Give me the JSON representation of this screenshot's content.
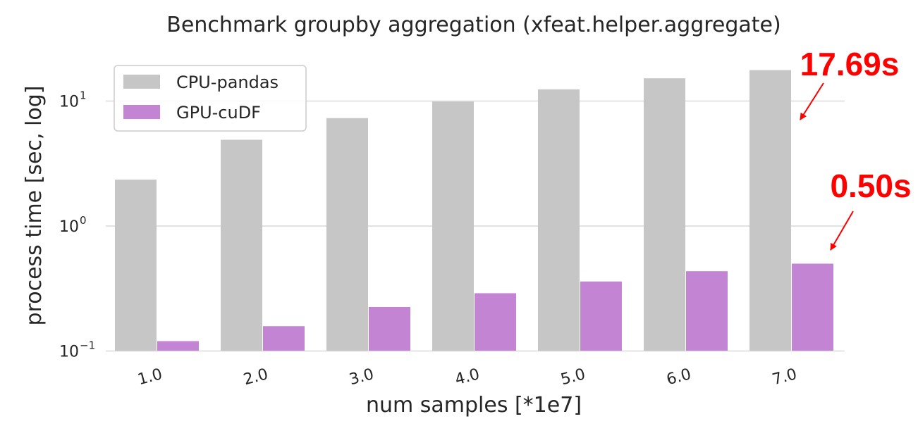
{
  "chart_data": {
    "type": "bar",
    "title": "Benchmark groupby aggregation (xfeat.helper.aggregate)",
    "xlabel": "num samples [*1e7]",
    "ylabel": "process time [sec, log]",
    "yscale": "log",
    "ylim": [
      0.085,
      25
    ],
    "grid": true,
    "legend_position": "upper-left",
    "categories": [
      "1.0",
      "2.0",
      "3.0",
      "4.0",
      "5.0",
      "6.0",
      "7.0"
    ],
    "series": [
      {
        "name": "CPU-pandas",
        "color": "#c6c6c6",
        "values": [
          2.35,
          4.9,
          7.3,
          9.9,
          12.4,
          15.2,
          17.69
        ]
      },
      {
        "name": "GPU-cuDF",
        "color": "#c484d4",
        "values": [
          0.12,
          0.158,
          0.225,
          0.29,
          0.36,
          0.435,
          0.5
        ]
      }
    ],
    "yticks": [
      {
        "base": "10",
        "exp": "1",
        "value": 10
      },
      {
        "base": "10",
        "exp": "0",
        "value": 1
      },
      {
        "base": "10",
        "exp": "−1",
        "value": 0.1
      }
    ],
    "annotations": [
      {
        "text": "17.69s",
        "color": "#ff0000",
        "points_to": "CPU-pandas 7.0"
      },
      {
        "text": "0.50s",
        "color": "#ff0000",
        "points_to": "GPU-cuDF 7.0"
      }
    ]
  }
}
